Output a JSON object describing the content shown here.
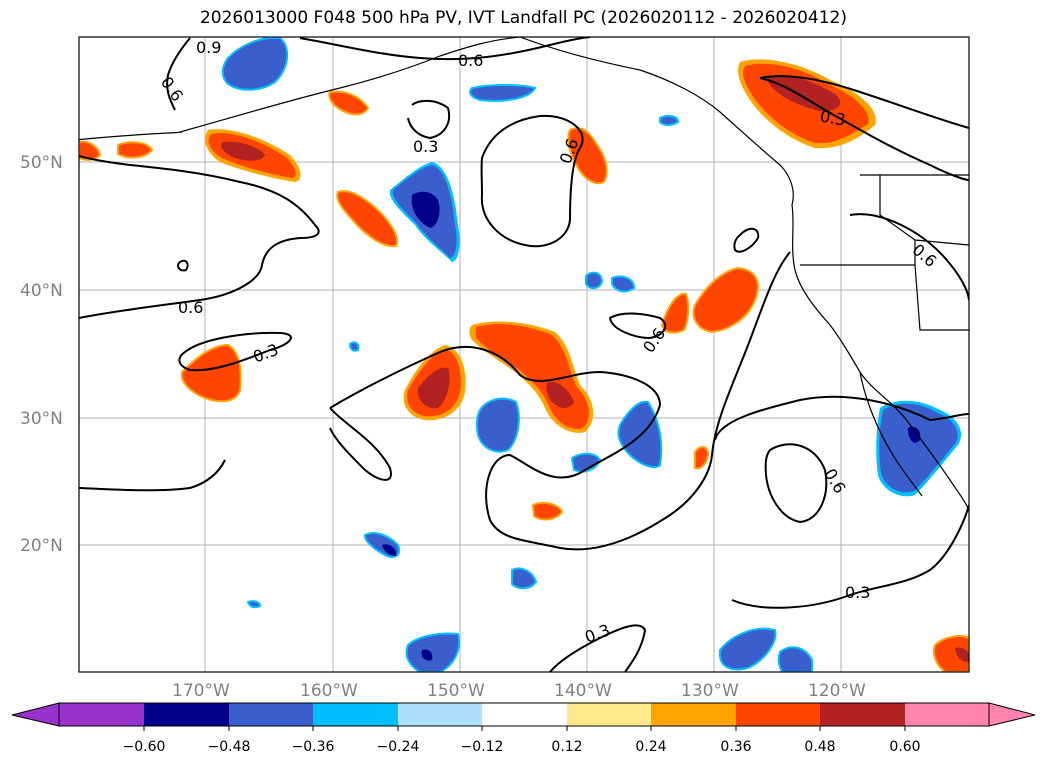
{
  "title": "2026013000 F048 500 hPa PV, IVT Landfall PC (2026020112 - 2026020412)",
  "map": {
    "lon_labels": [
      "170°W",
      "160°W",
      "150°W",
      "140°W",
      "130°W",
      "120°W"
    ],
    "lat_labels": [
      "50°N",
      "40°N",
      "30°N",
      "20°N"
    ],
    "contour_labels": [
      "0.9",
      "0.6",
      "0.6",
      "0.3",
      "0.6",
      "0.3",
      "0.6",
      "0.3",
      "0.6",
      "0.6",
      "0.3",
      "0.3",
      "0.6",
      "0.3",
      "0.3"
    ],
    "colors": {
      "pos_light": "#ffe98c",
      "pos_mid": "#ffa300",
      "pos_strong": "#ff4500",
      "pos_max": "#b22222",
      "pos_over": "#ff85b0",
      "neg_light": "#aee0fb",
      "neg_mid": "#00bfff",
      "neg_strong": "#3a5fcd",
      "neg_max": "#00008b",
      "neg_over": "#9932cc"
    }
  },
  "colorbar": {
    "ticks": [
      "−0.60",
      "−0.48",
      "−0.36",
      "−0.24",
      "−0.12",
      "0.12",
      "0.24",
      "0.36",
      "0.48",
      "0.60"
    ],
    "colors": [
      "#9932cc",
      "#00008b",
      "#3a5fcd",
      "#00bfff",
      "#aee0fb",
      "#ffffff",
      "#ffe98c",
      "#ffa300",
      "#ff4500",
      "#b22222",
      "#ff85b0"
    ]
  }
}
